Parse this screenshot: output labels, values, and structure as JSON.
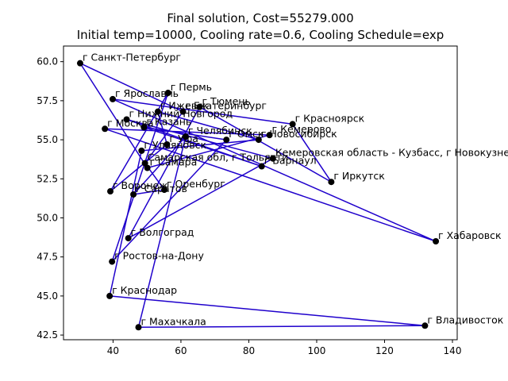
{
  "chart_data": {
    "type": "line",
    "title": "Final solution, Cost=55279.000",
    "subtitle": "Initial temp=10000, Cooling rate=0.6, Cooling Schedule=exp",
    "xlabel": "",
    "ylabel": "",
    "xlim": [
      25.4,
      141.4
    ],
    "ylim": [
      42.2,
      61.0
    ],
    "xticks": [
      40,
      60,
      80,
      100,
      120,
      140
    ],
    "yticks": [
      42.5,
      45.0,
      47.5,
      50.0,
      52.5,
      55.0,
      57.5,
      60.0
    ],
    "ytick_labels": [
      "42.5",
      "45.0",
      "47.5",
      "50.0",
      "52.5",
      "55.0",
      "57.5",
      "60.0"
    ],
    "grid": false,
    "line_color": "#1f00cc",
    "marker_color": "#000000",
    "cities": [
      {
        "label": "г Санкт-Петербург",
        "x": 30.3,
        "y": 59.9
      },
      {
        "label": "г Ярославль",
        "x": 39.9,
        "y": 57.6
      },
      {
        "label": "г Пермь",
        "x": 56.2,
        "y": 58.0
      },
      {
        "label": "г Тюмень",
        "x": 65.5,
        "y": 57.1
      },
      {
        "label": "г Ижевск",
        "x": 53.2,
        "y": 56.8
      },
      {
        "label": "г Екатеринбург",
        "x": 60.6,
        "y": 56.8
      },
      {
        "label": "г Нижний Новгород",
        "x": 44.0,
        "y": 56.3
      },
      {
        "label": "г Москва",
        "x": 37.6,
        "y": 55.7
      },
      {
        "label": "г Казань",
        "x": 49.1,
        "y": 55.8
      },
      {
        "label": "г Челябинск",
        "x": 61.4,
        "y": 55.2
      },
      {
        "label": "г Омск",
        "x": 73.4,
        "y": 55.0
      },
      {
        "label": "г Новосибирск",
        "x": 82.9,
        "y": 55.0
      },
      {
        "label": "г Кемерово",
        "x": 86.1,
        "y": 55.3
      },
      {
        "label": "г Красноярск",
        "x": 92.9,
        "y": 56.0
      },
      {
        "label": "г Уфа",
        "x": 55.9,
        "y": 54.7
      },
      {
        "label": "г Ульяновск",
        "x": 48.4,
        "y": 54.3
      },
      {
        "label": "Кемеровская область - Кузбасс, г Новокузнецк",
        "x": 87.1,
        "y": 53.8
      },
      {
        "label": "Самарская обл, г Тольятти",
        "x": 49.4,
        "y": 53.5
      },
      {
        "label": "г Барнаул",
        "x": 83.8,
        "y": 53.3
      },
      {
        "label": "г Самара",
        "x": 50.1,
        "y": 53.2
      },
      {
        "label": "г Иркутск",
        "x": 104.3,
        "y": 52.3
      },
      {
        "label": "г Оренбург",
        "x": 55.1,
        "y": 51.8
      },
      {
        "label": "г Воронеж",
        "x": 39.2,
        "y": 51.7
      },
      {
        "label": "г Саратов",
        "x": 46.0,
        "y": 51.5
      },
      {
        "label": "г Волгоград",
        "x": 44.5,
        "y": 48.7
      },
      {
        "label": "г Хабаровск",
        "x": 135.1,
        "y": 48.5
      },
      {
        "label": "г Ростов-на-Дону",
        "x": 39.7,
        "y": 47.2
      },
      {
        "label": "г Краснодар",
        "x": 39.0,
        "y": 45.0
      },
      {
        "label": "г Махачкала",
        "x": 47.5,
        "y": 43.0
      },
      {
        "label": "г Владивосток",
        "x": 131.9,
        "y": 43.1
      }
    ],
    "route": [
      "г Санкт-Петербург",
      "г Самара",
      "г Кемерово",
      "г Москва",
      "г Хабаровск",
      "г Ярославль",
      "г Красноярск",
      "г Иркутск",
      "г Тюмень",
      "г Волгоград",
      "Кемеровская область - Кузбасс, г Новокузнецк",
      "г Нижний Новгород",
      "г Барнаул",
      "г Казань",
      "г Омск",
      "г Ростов-на-Дону",
      "г Пермь",
      "г Воронеж",
      "г Уфа",
      "г Ижевск",
      "г Новосибирск",
      "г Ульяновск",
      "г Краснодар",
      "г Владивосток",
      "г Махачкала",
      "г Челябинск",
      "г Саратов",
      "г Оренбург",
      "Самарская обл, г Тольятти",
      "г Екатеринбург",
      "г Санкт-Петербург"
    ]
  }
}
